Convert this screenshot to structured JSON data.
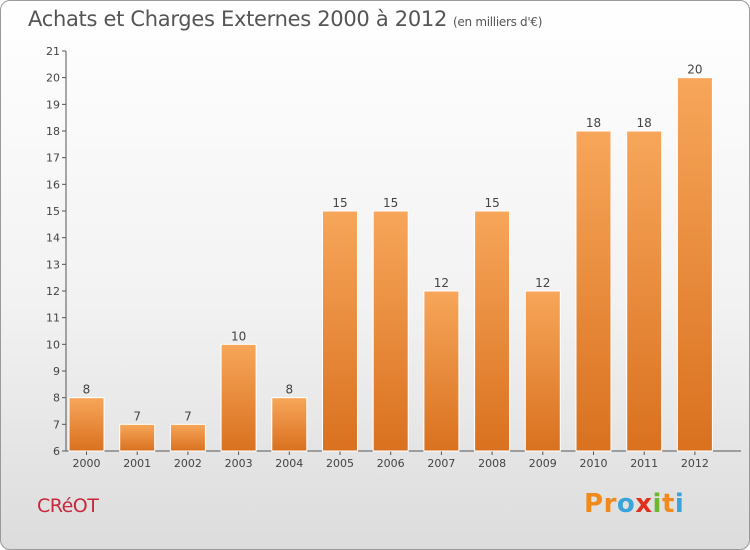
{
  "header": {
    "title": "Achats et Charges Externes 2000 à 2012",
    "subtitle": "(en milliers d'€)"
  },
  "footer": {
    "commune": "CRéOT",
    "logo_text": "Proxiti",
    "logo_letters": [
      {
        "char": "P",
        "color": "#f08a1c"
      },
      {
        "char": "r",
        "color": "#f08a1c"
      },
      {
        "char": "o",
        "color": "#3aa3d8"
      },
      {
        "char": "x",
        "color": "#e0301e"
      },
      {
        "char": "i",
        "color": "#6cb82c"
      },
      {
        "char": "t",
        "color": "#f08a1c"
      },
      {
        "char": "i",
        "color": "#3aa3d8"
      }
    ]
  },
  "colors": {
    "bar_light": "#f7a65a",
    "bar_dark": "#d9711f",
    "axis": "#555555",
    "commune": "#c8283c"
  },
  "chart_data": {
    "type": "bar",
    "categories": [
      "2000",
      "2001",
      "2002",
      "2003",
      "2004",
      "2005",
      "2006",
      "2007",
      "2008",
      "2009",
      "2010",
      "2011",
      "2012"
    ],
    "values": [
      8,
      7,
      7,
      10,
      8,
      15,
      15,
      12,
      15,
      12,
      18,
      18,
      20
    ],
    "ylim": [
      6,
      21
    ],
    "yticks": [
      6,
      7,
      8,
      9,
      10,
      11,
      12,
      13,
      14,
      15,
      16,
      17,
      18,
      19,
      20,
      21
    ],
    "grid": false,
    "xlabel": "",
    "ylabel": ""
  }
}
